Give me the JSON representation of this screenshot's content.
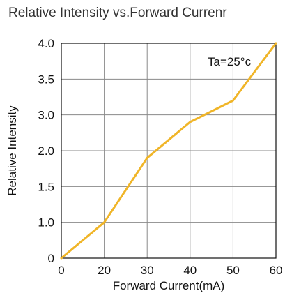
{
  "chart_data": {
    "type": "line",
    "title": "Relative Intensity vs.Forward Currenr",
    "xlabel": "Forward Current(mA)",
    "ylabel": "Relative Intensity",
    "x_ticks": [
      "0",
      "20",
      "30",
      "40",
      "50",
      "60"
    ],
    "y_ticks": [
      "0",
      "1.0",
      "1.5",
      "2.0",
      "3.0",
      "3.5",
      "4.0"
    ],
    "annotation": "Ta=25°c",
    "grid": true,
    "series": [
      {
        "color": "#f0b528",
        "x": [
          0,
          20,
          30,
          40,
          50,
          60
        ],
        "y": [
          0,
          1.0,
          1.9,
          2.8,
          3.2,
          4.0
        ]
      }
    ]
  }
}
